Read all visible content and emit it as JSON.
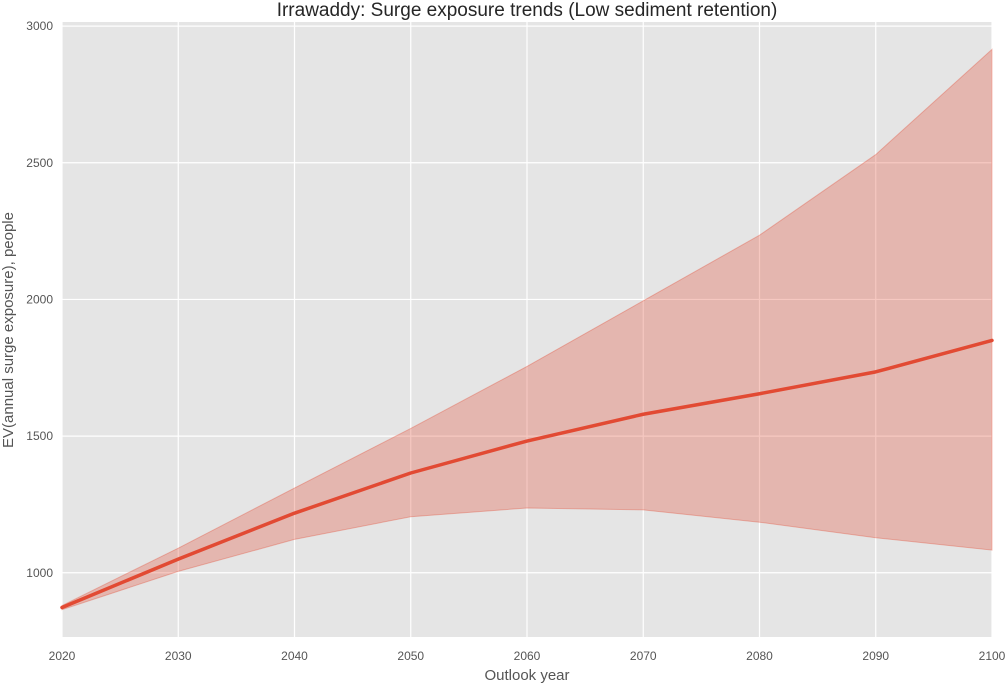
{
  "chart_data": {
    "type": "area",
    "title": "Irrawaddy: Surge exposure trends (Low sediment retention)",
    "xlabel": "Outlook year",
    "ylabel": "EV(annual surge exposure), people",
    "x": [
      2020,
      2030,
      2040,
      2050,
      2060,
      2070,
      2080,
      2090,
      2100
    ],
    "xlim": [
      2020,
      2100
    ],
    "ylim": [
      765,
      3015
    ],
    "xticks": [
      2020,
      2030,
      2040,
      2050,
      2060,
      2070,
      2080,
      2090,
      2100
    ],
    "yticks": [
      1000,
      1500,
      2000,
      2500,
      3000
    ],
    "grid": true,
    "series": [
      {
        "values": [
          873,
          1050,
          1218,
          1365,
          1482,
          1580,
          1655,
          1735,
          1850
        ],
        "lower": [
          865,
          1005,
          1122,
          1205,
          1237,
          1230,
          1185,
          1128,
          1083
        ],
        "upper": [
          880,
          1090,
          1310,
          1528,
          1755,
          1995,
          2235,
          2530,
          2915
        ],
        "line_color": "#E24A33",
        "band_color": "#E24A33"
      }
    ]
  }
}
